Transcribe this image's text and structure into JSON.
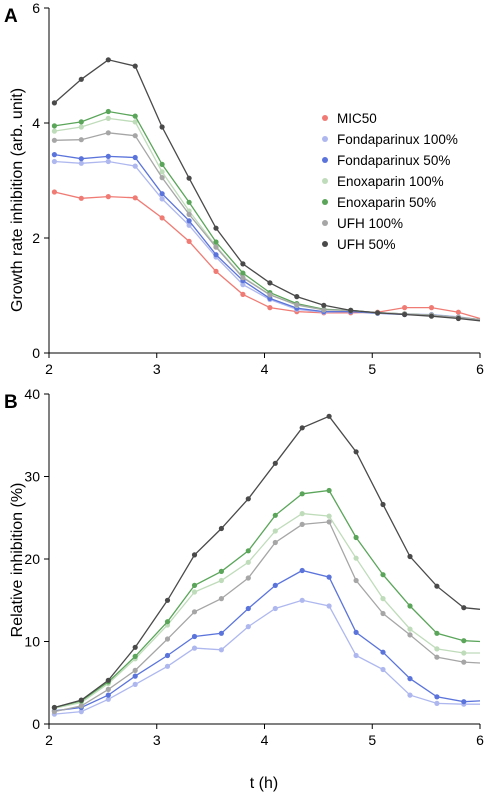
{
  "figure": {
    "panels": [
      {
        "letter": "A",
        "ylabel": "Growth rate inhibition (arb. unit)",
        "xlabel": "",
        "xlim": [
          2,
          6
        ],
        "ylim": [
          0,
          6
        ],
        "xticks": [
          "2",
          "3",
          "4",
          "5",
          "6"
        ],
        "yticks": [
          "0",
          "2",
          "4",
          "6"
        ]
      },
      {
        "letter": "B",
        "ylabel": "Relative inhibition (%)",
        "xlabel": "t (h)",
        "xlim": [
          2,
          6
        ],
        "ylim": [
          0,
          40
        ],
        "xticks": [
          "2",
          "3",
          "4",
          "5",
          "6"
        ],
        "yticks": [
          "0",
          "10",
          "20",
          "30",
          "40"
        ]
      }
    ]
  },
  "chart_data": [
    {
      "type": "line",
      "panel": "A",
      "xlabel": "",
      "ylabel": "Growth rate inhibition (arb. unit)",
      "xlim": [
        2,
        6
      ],
      "ylim": [
        0,
        6
      ],
      "grid": false,
      "legend": "right",
      "x": [
        2.05,
        2.3,
        2.55,
        2.8,
        3.05,
        3.3,
        3.55,
        3.8,
        4.05,
        4.3,
        4.55,
        4.8,
        5.05,
        5.3,
        5.55,
        5.8,
        6.0
      ],
      "series": [
        {
          "name": "MIC50",
          "color": "#f07b74",
          "values": [
            2.8,
            2.69,
            2.72,
            2.7,
            2.35,
            1.94,
            1.42,
            1.02,
            0.79,
            0.72,
            0.7,
            0.7,
            0.71,
            0.79,
            0.79,
            0.71,
            0.6
          ]
        },
        {
          "name": "Fondaparinux 100%",
          "color": "#aeb8ef",
          "values": [
            3.33,
            3.3,
            3.33,
            3.25,
            2.68,
            2.22,
            1.67,
            1.19,
            0.93,
            0.76,
            0.71,
            0.72,
            0.7,
            0.68,
            0.67,
            0.63,
            0.58
          ]
        },
        {
          "name": "Fondaparinux 50%",
          "color": "#5b74db",
          "values": [
            3.45,
            3.38,
            3.42,
            3.4,
            2.77,
            2.3,
            1.71,
            1.26,
            0.95,
            0.78,
            0.72,
            0.72,
            0.69,
            0.67,
            0.66,
            0.62,
            0.58
          ]
        },
        {
          "name": "Enoxaparin 100%",
          "color": "#bfdcba",
          "values": [
            3.86,
            3.93,
            4.08,
            4.02,
            3.15,
            2.47,
            1.86,
            1.32,
            1.02,
            0.83,
            0.75,
            0.74,
            0.7,
            0.68,
            0.66,
            0.62,
            0.58
          ]
        },
        {
          "name": "Enoxaparin 50%",
          "color": "#5aa55a",
          "values": [
            3.95,
            4.02,
            4.2,
            4.12,
            3.28,
            2.62,
            1.93,
            1.39,
            1.05,
            0.86,
            0.76,
            0.74,
            0.7,
            0.68,
            0.66,
            0.62,
            0.58
          ]
        },
        {
          "name": "UFH 100%",
          "color": "#a6a6a6",
          "values": [
            3.7,
            3.71,
            3.83,
            3.78,
            3.05,
            2.41,
            1.84,
            1.31,
            1.01,
            0.84,
            0.75,
            0.74,
            0.7,
            0.68,
            0.66,
            0.62,
            0.58
          ]
        },
        {
          "name": "UFH 50%",
          "color": "#4a4a4a",
          "values": [
            4.35,
            4.76,
            5.1,
            4.99,
            3.93,
            3.04,
            2.17,
            1.55,
            1.22,
            0.98,
            0.83,
            0.74,
            0.7,
            0.67,
            0.64,
            0.6,
            0.56
          ]
        }
      ]
    },
    {
      "type": "line",
      "panel": "B",
      "xlabel": "t (h)",
      "ylabel": "Relative inhibition (%)",
      "xlim": [
        2,
        6
      ],
      "ylim": [
        0,
        40
      ],
      "grid": false,
      "x": [
        2.05,
        2.3,
        2.55,
        2.8,
        3.1,
        3.35,
        3.6,
        3.85,
        4.1,
        4.35,
        4.6,
        4.85,
        5.1,
        5.35,
        5.6,
        5.85,
        6.0
      ],
      "series": [
        {
          "name": "Fondaparinux 100%",
          "color": "#aeb8ef",
          "values": [
            1.2,
            1.5,
            3.0,
            4.8,
            7.0,
            9.2,
            9.0,
            11.8,
            14.0,
            15.0,
            14.3,
            8.3,
            6.6,
            3.5,
            2.5,
            2.4,
            2.4
          ]
        },
        {
          "name": "Fondaparinux 50%",
          "color": "#5b74db",
          "values": [
            1.6,
            2.0,
            3.5,
            5.8,
            8.3,
            10.6,
            11.0,
            14.0,
            16.8,
            18.6,
            17.8,
            11.1,
            8.7,
            5.5,
            3.3,
            2.7,
            2.8
          ]
        },
        {
          "name": "Enoxaparin 100%",
          "color": "#bfdcba",
          "values": [
            1.9,
            2.6,
            4.9,
            7.9,
            12.0,
            16.0,
            17.4,
            19.6,
            23.4,
            25.5,
            25.2,
            20.1,
            15.2,
            11.5,
            9.1,
            8.6,
            8.6
          ]
        },
        {
          "name": "Enoxaparin 50%",
          "color": "#5aa55a",
          "values": [
            2.0,
            2.8,
            5.1,
            8.2,
            12.4,
            16.8,
            18.5,
            21.0,
            25.3,
            27.9,
            28.3,
            22.6,
            18.1,
            14.3,
            11.0,
            10.1,
            10.0
          ]
        },
        {
          "name": "UFH 100%",
          "color": "#a6a6a6",
          "values": [
            1.5,
            2.2,
            4.2,
            6.5,
            10.3,
            13.6,
            15.2,
            17.7,
            22.0,
            24.2,
            24.5,
            17.4,
            13.4,
            10.8,
            8.1,
            7.5,
            7.4
          ]
        },
        {
          "name": "UFH 50%",
          "color": "#4a4a4a",
          "values": [
            2.0,
            2.9,
            5.3,
            9.3,
            15.0,
            20.5,
            23.7,
            27.3,
            31.6,
            35.9,
            37.3,
            33.0,
            26.6,
            20.3,
            16.7,
            14.1,
            13.9
          ]
        }
      ]
    }
  ]
}
